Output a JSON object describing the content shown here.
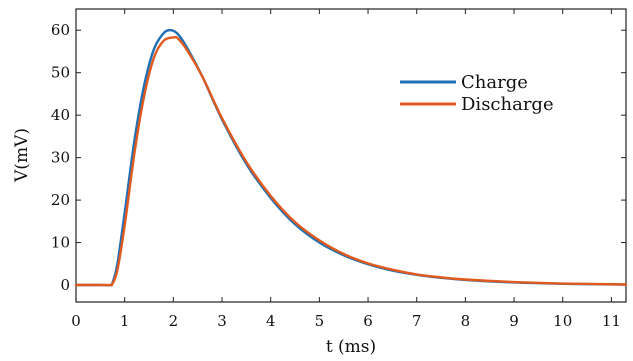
{
  "chart_data": {
    "type": "line",
    "xlabel": "t (ms)",
    "ylabel": "V(mV)",
    "xlim": [
      0,
      11.3
    ],
    "ylim": [
      -4,
      65
    ],
    "xticks": [
      0,
      1,
      2,
      3,
      4,
      5,
      6,
      7,
      8,
      9,
      10,
      11
    ],
    "yticks": [
      0,
      10,
      20,
      30,
      40,
      50,
      60
    ],
    "grid": false,
    "legend_position": "top-right",
    "series": [
      {
        "name": "Charge",
        "color": "#1f6fb4",
        "x": [
          0,
          0.5,
          0.7,
          0.75,
          0.85,
          1.0,
          1.2,
          1.4,
          1.6,
          1.8,
          1.95,
          2.1,
          2.3,
          2.6,
          3.0,
          3.5,
          4.0,
          4.5,
          5.0,
          5.5,
          6.0,
          6.5,
          7.0,
          7.5,
          8.0,
          9.0,
          10.0,
          11.0,
          11.3
        ],
        "values": [
          0,
          0,
          0,
          0.5,
          5,
          17,
          34,
          47,
          55.5,
          59.3,
          60,
          59,
          55.5,
          49,
          39,
          28.5,
          20.5,
          14.3,
          10,
          7,
          4.9,
          3.4,
          2.4,
          1.7,
          1.2,
          0.6,
          0.3,
          0.15,
          0.1
        ]
      },
      {
        "name": "Discharge",
        "color": "#e05a1e",
        "x": [
          0,
          0.5,
          0.7,
          0.75,
          0.85,
          1.0,
          1.2,
          1.4,
          1.6,
          1.8,
          2.0,
          2.1,
          2.3,
          2.6,
          3.0,
          3.5,
          4.0,
          4.5,
          5.0,
          5.5,
          6.0,
          6.5,
          7.0,
          7.5,
          8.0,
          9.0,
          10.0,
          11.0,
          11.3
        ],
        "values": [
          0,
          0,
          0,
          0.3,
          3.5,
          14,
          31,
          44.5,
          53.5,
          57.5,
          58.3,
          58,
          55,
          49,
          39.3,
          29,
          21,
          14.8,
          10.5,
          7.3,
          5.1,
          3.6,
          2.5,
          1.8,
          1.3,
          0.7,
          0.35,
          0.18,
          0.12
        ]
      }
    ]
  }
}
